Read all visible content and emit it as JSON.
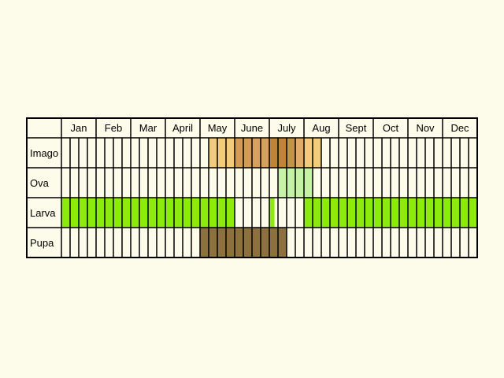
{
  "months": [
    "Jan",
    "Feb",
    "Mar",
    "April",
    "May",
    "June",
    "July",
    "Aug",
    "Sept",
    "Oct",
    "Nov",
    "Dec"
  ],
  "stages": [
    {
      "label": "Imago",
      "spans": [
        {
          "from": 4.25,
          "to": 5.0,
          "color": "#f3cb7c"
        },
        {
          "from": 5.0,
          "to": 5.5,
          "color": "#d39b56"
        },
        {
          "from": 5.5,
          "to": 6.0,
          "color": "#d8a05e"
        },
        {
          "from": 6.0,
          "to": 6.5,
          "color": "#bf8436"
        },
        {
          "from": 6.5,
          "to": 6.75,
          "color": "#c2934b"
        },
        {
          "from": 6.75,
          "to": 7.0,
          "color": "#e0ac6a"
        },
        {
          "from": 7.0,
          "to": 7.5,
          "color": "#f3cb7c"
        }
      ]
    },
    {
      "label": "Ova",
      "spans": [
        {
          "from": 6.25,
          "to": 7.25,
          "color": "#c6f2a8"
        }
      ]
    },
    {
      "label": "Larva",
      "spans": [
        {
          "from": 0.0,
          "to": 5.0,
          "color": "#8ceb0a"
        },
        {
          "from": 6.0,
          "to": 6.15,
          "color": "#8ceb0a"
        },
        {
          "from": 7.0,
          "to": 12.0,
          "color": "#8ceb0a"
        }
      ]
    },
    {
      "label": "Pupa",
      "spans": [
        {
          "from": 4.0,
          "to": 6.5,
          "color": "#8c713e"
        }
      ]
    }
  ],
  "colors": {
    "background": "#fdfbe9",
    "grid_line": "#000000",
    "cell_fill": "#fdfbe9"
  }
}
